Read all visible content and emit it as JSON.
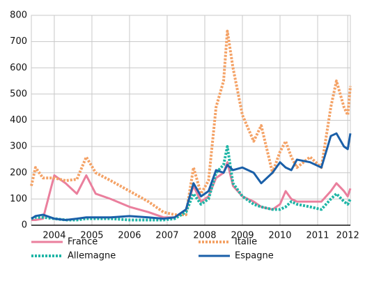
{
  "chart_data": {
    "type": "line",
    "x": [
      2003.89,
      2004.0,
      2004.2,
      2004.5,
      2004.8,
      2005.1,
      2005.35,
      2005.6,
      2006.0,
      2006.5,
      2007.0,
      2007.4,
      2007.7,
      2008.0,
      2008.2,
      2008.4,
      2008.6,
      2008.8,
      2009.0,
      2009.1,
      2009.25,
      2009.5,
      2009.8,
      2010.0,
      2010.3,
      2010.5,
      2010.65,
      2010.8,
      2010.95,
      2011.3,
      2011.6,
      2011.85,
      2012.0,
      2012.2,
      2012.3,
      2012.37
    ],
    "series": [
      {
        "name": "France",
        "color": "#ea7f9d",
        "dash": false,
        "values": [
          20,
          20,
          25,
          190,
          160,
          120,
          190,
          120,
          100,
          70,
          50,
          30,
          30,
          60,
          150,
          90,
          110,
          180,
          200,
          240,
          150,
          110,
          90,
          70,
          60,
          80,
          130,
          100,
          90,
          90,
          90,
          130,
          160,
          130,
          110,
          140
        ]
      },
      {
        "name": "Italie",
        "color": "#f4a266",
        "dash": true,
        "values": [
          150,
          220,
          180,
          180,
          170,
          175,
          260,
          200,
          170,
          130,
          90,
          50,
          40,
          40,
          220,
          120,
          170,
          450,
          550,
          740,
          600,
          420,
          320,
          380,
          200,
          280,
          320,
          260,
          220,
          260,
          220,
          450,
          550,
          450,
          420,
          530
        ]
      },
      {
        "name": "Allemagne",
        "color": "#1fb5a6",
        "dash": true,
        "values": [
          25,
          30,
          30,
          25,
          20,
          20,
          25,
          25,
          25,
          20,
          20,
          20,
          25,
          50,
          120,
          80,
          100,
          200,
          230,
          300,
          160,
          110,
          80,
          70,
          60,
          60,
          70,
          90,
          80,
          70,
          60,
          100,
          120,
          90,
          80,
          100
        ]
      },
      {
        "name": "Espagne",
        "color": "#1a5fa8",
        "dash": false,
        "values": [
          25,
          35,
          40,
          25,
          20,
          25,
          30,
          30,
          30,
          35,
          30,
          25,
          30,
          60,
          160,
          110,
          130,
          210,
          200,
          230,
          210,
          220,
          200,
          160,
          200,
          240,
          220,
          210,
          250,
          240,
          220,
          340,
          350,
          300,
          290,
          350
        ]
      }
    ],
    "xlim": [
      2003.89,
      2012.37
    ],
    "xticks": [
      {
        "value": 2004.5,
        "label": "2004"
      },
      {
        "value": 2005.5,
        "label": "2005"
      },
      {
        "value": 2006.5,
        "label": "2006"
      },
      {
        "value": 2007.5,
        "label": "2007"
      },
      {
        "value": 2008.5,
        "label": "2008"
      },
      {
        "value": 2009.5,
        "label": "2009"
      },
      {
        "value": 2010.5,
        "label": "2010"
      },
      {
        "value": 2011.5,
        "label": "2011"
      },
      {
        "value": 2012.3,
        "label": "2012"
      }
    ],
    "ylim": [
      0,
      800
    ],
    "yticks": [
      0,
      100,
      200,
      300,
      400,
      500,
      600,
      700,
      800
    ],
    "grid": true,
    "legend": "bottom"
  }
}
